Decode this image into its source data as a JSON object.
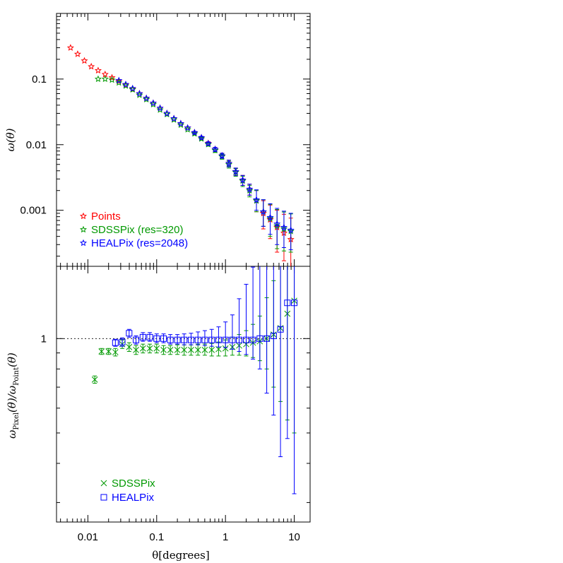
{
  "chart_data": [
    {
      "type": "scatter",
      "panel": "top",
      "xscale": "log",
      "yscale": "log",
      "xlim": [
        0.0035,
        17
      ],
      "ylim": [
        0.00014,
        1.0
      ],
      "ylabel": "ω(θ)",
      "ytick_labels": [
        "0.1",
        "0.01",
        "0.001"
      ],
      "ytick_values": [
        0.1,
        0.01,
        0.001
      ],
      "legend_position": "bottom-left",
      "series": [
        {
          "name": "Points",
          "color": "#ff0000",
          "marker": "star-open",
          "x": [
            0.0056,
            0.0071,
            0.0089,
            0.0112,
            0.0141,
            0.0178,
            0.0224,
            0.0282,
            0.0355,
            0.0447,
            0.0562,
            0.0708,
            0.0891,
            0.112,
            0.141,
            0.178,
            0.224,
            0.282,
            0.355,
            0.447,
            0.562,
            0.708,
            0.891,
            1.12,
            1.41,
            1.78,
            2.24,
            2.82,
            3.55,
            4.47,
            5.62,
            7.08,
            8.91
          ],
          "y": [
            0.3,
            0.24,
            0.19,
            0.155,
            0.135,
            0.118,
            0.105,
            0.093,
            0.082,
            0.071,
            0.06,
            0.051,
            0.043,
            0.036,
            0.03,
            0.025,
            0.021,
            0.018,
            0.0153,
            0.0128,
            0.0105,
            0.0085,
            0.0068,
            0.0052,
            0.0039,
            0.0029,
            0.0021,
            0.0014,
            0.0009,
            0.00072,
            0.00055,
            0.00045,
            0.00036
          ],
          "err_lo": [
            0,
            0,
            0,
            0,
            0,
            0,
            0,
            0,
            0,
            0,
            0,
            0,
            0,
            0,
            0,
            0,
            0,
            0,
            0.0006,
            0.0006,
            0.0006,
            0.0006,
            0.0006,
            0.0006,
            0.0005,
            0.0005,
            0.0004,
            0.00045,
            0.00038,
            0.00035,
            0.00032,
            0.00028,
            0.00025
          ],
          "err_hi": [
            0,
            0,
            0,
            0,
            0,
            0,
            0,
            0,
            0,
            0,
            0,
            0,
            0,
            0,
            0,
            0,
            0,
            0,
            0.0006,
            0.0006,
            0.0006,
            0.0006,
            0.0006,
            0.0006,
            0.0005,
            0.0005,
            0.0004,
            0.0006,
            0.0005,
            0.00048,
            0.00045,
            0.00042,
            0.0004
          ]
        },
        {
          "name": "SDSSPix (res=320)",
          "color": "#009900",
          "marker": "star-open",
          "x": [
            0.0141,
            0.0178,
            0.0224,
            0.0282,
            0.0355,
            0.0447,
            0.0562,
            0.0708,
            0.0891,
            0.112,
            0.141,
            0.178,
            0.224,
            0.282,
            0.355,
            0.447,
            0.562,
            0.708,
            0.891,
            1.12,
            1.41,
            1.78,
            2.24,
            2.82,
            3.55,
            4.47,
            5.62,
            7.08,
            8.91
          ],
          "y": [
            0.1,
            0.1,
            0.097,
            0.088,
            0.079,
            0.069,
            0.057,
            0.049,
            0.041,
            0.034,
            0.029,
            0.024,
            0.02,
            0.017,
            0.0147,
            0.0123,
            0.0101,
            0.0082,
            0.0066,
            0.005,
            0.0038,
            0.0028,
            0.002,
            0.0014,
            0.00095,
            0.00075,
            0.00058,
            0.00052,
            0.00048
          ],
          "err_lo": [
            0,
            0,
            0,
            0,
            0,
            0,
            0,
            0,
            0,
            0,
            0,
            0,
            0,
            0,
            0.0006,
            0.0006,
            0.0006,
            0.0006,
            0.0006,
            0.0006,
            0.0005,
            0.0005,
            0.0004,
            0.00045,
            0.00038,
            0.00035,
            0.00032,
            0.00028,
            0.00025
          ],
          "err_hi": [
            0,
            0,
            0,
            0,
            0,
            0,
            0,
            0,
            0,
            0,
            0,
            0,
            0,
            0,
            0.0006,
            0.0006,
            0.0006,
            0.0006,
            0.0006,
            0.0006,
            0.0005,
            0.0005,
            0.0004,
            0.0006,
            0.0005,
            0.00048,
            0.00045,
            0.00042,
            0.0004
          ]
        },
        {
          "name": "HEALPix (res=2048)",
          "color": "#0000ff",
          "marker": "star-open",
          "x": [
            0.0282,
            0.0355,
            0.0447,
            0.0562,
            0.0708,
            0.0891,
            0.112,
            0.141,
            0.178,
            0.224,
            0.282,
            0.355,
            0.447,
            0.562,
            0.708,
            0.891,
            1.12,
            1.41,
            1.78,
            2.24,
            2.82,
            3.55,
            4.47,
            5.62,
            7.08,
            8.91
          ],
          "y": [
            0.095,
            0.083,
            0.072,
            0.06,
            0.051,
            0.043,
            0.036,
            0.03,
            0.025,
            0.021,
            0.018,
            0.0153,
            0.0128,
            0.0104,
            0.0085,
            0.0068,
            0.0052,
            0.0039,
            0.0029,
            0.0021,
            0.00145,
            0.00095,
            0.00078,
            0.00062,
            0.00055,
            0.0005
          ],
          "err_lo": [
            0,
            0,
            0,
            0,
            0,
            0,
            0,
            0,
            0,
            0,
            0,
            0.0006,
            0.0006,
            0.0006,
            0.0006,
            0.0006,
            0.0006,
            0.0005,
            0.0005,
            0.0004,
            0.00045,
            0.00038,
            0.00035,
            0.00032,
            0.00028,
            0.00025
          ],
          "err_hi": [
            0,
            0,
            0,
            0,
            0,
            0,
            0,
            0,
            0,
            0,
            0,
            0.0006,
            0.0006,
            0.0006,
            0.0006,
            0.0006,
            0.0006,
            0.0005,
            0.0005,
            0.0004,
            0.0006,
            0.0005,
            0.00048,
            0.00045,
            0.00042,
            0.0004
          ]
        }
      ]
    },
    {
      "type": "scatter",
      "panel": "bottom",
      "xscale": "log",
      "yscale": "log",
      "xlim": [
        0.0035,
        17
      ],
      "ylim": [
        0.26,
        1.7
      ],
      "xlabel": "θ[degrees]",
      "ylabel": "ω_Pixel(θ)/ω_Point(θ)",
      "ylabel_parts": {
        "omega": "ω",
        "sub_num": "Pixel",
        "theta": "(θ)/",
        "sub_den": "Point",
        "theta_end": "(θ)"
      },
      "xtick_labels": [
        "0.01",
        "0.1",
        "1",
        "10"
      ],
      "xtick_values": [
        0.01,
        0.1,
        1,
        10
      ],
      "ytick_labels": [
        "1"
      ],
      "ytick_values": [
        1
      ],
      "reference_line": 1,
      "legend_position": "bottom-left",
      "series": [
        {
          "name": "SDSSPix",
          "color": "#009900",
          "marker": "x",
          "x": [
            0.0126,
            0.0158,
            0.02,
            0.0251,
            0.0316,
            0.0398,
            0.0501,
            0.0631,
            0.0794,
            0.1,
            0.126,
            0.158,
            0.2,
            0.251,
            0.316,
            0.398,
            0.501,
            0.631,
            0.794,
            1.0,
            1.26,
            1.58,
            2.0,
            2.51,
            3.16,
            3.98,
            5.01,
            6.31,
            7.94,
            10.0
          ],
          "y": [
            0.74,
            0.91,
            0.91,
            0.905,
            0.96,
            0.94,
            0.92,
            0.93,
            0.93,
            0.93,
            0.92,
            0.92,
            0.92,
            0.92,
            0.92,
            0.92,
            0.92,
            0.92,
            0.925,
            0.93,
            0.94,
            0.95,
            0.96,
            0.97,
            0.98,
            1.0,
            1.03,
            1.08,
            1.2,
            1.32
          ],
          "err_lo": [
            0.02,
            0.02,
            0.02,
            0.025,
            0.03,
            0.03,
            0.03,
            0.03,
            0.03,
            0.03,
            0.03,
            0.03,
            0.03,
            0.035,
            0.035,
            0.035,
            0.035,
            0.04,
            0.045,
            0.05,
            0.055,
            0.065,
            0.08,
            0.1,
            0.13,
            0.2,
            0.33,
            0.45,
            0.65,
            0.82
          ],
          "err_hi": [
            0.02,
            0.02,
            0.02,
            0.025,
            0.03,
            0.03,
            0.03,
            0.03,
            0.03,
            0.03,
            0.03,
            0.03,
            0.035,
            0.035,
            0.035,
            0.04,
            0.04,
            0.045,
            0.05,
            0.06,
            0.07,
            0.08,
            0.1,
            0.14,
            0.2,
            0.35,
            0.5,
            0.7,
            1.1,
            1.2
          ]
        },
        {
          "name": "HEALPix",
          "color": "#0000ff",
          "marker": "square-open",
          "x": [
            0.0251,
            0.0316,
            0.0398,
            0.0501,
            0.0631,
            0.0794,
            0.1,
            0.126,
            0.158,
            0.2,
            0.251,
            0.316,
            0.398,
            0.501,
            0.631,
            0.794,
            1.0,
            1.26,
            1.58,
            2.0,
            2.51,
            3.16,
            3.98,
            5.01,
            6.31,
            7.94,
            10.0
          ],
          "y": [
            0.97,
            0.975,
            1.04,
            0.99,
            1.01,
            1.01,
            1.0,
            1.0,
            0.99,
            0.99,
            0.99,
            0.99,
            0.99,
            0.99,
            0.99,
            0.99,
            0.99,
            0.99,
            0.99,
            0.99,
            0.99,
            1.0,
            1.0,
            1.02,
            1.07,
            1.3,
            1.3
          ],
          "err_lo": [
            0.025,
            0.03,
            0.03,
            0.03,
            0.03,
            0.03,
            0.03,
            0.03,
            0.03,
            0.03,
            0.035,
            0.035,
            0.035,
            0.04,
            0.045,
            0.05,
            0.055,
            0.065,
            0.08,
            0.1,
            0.13,
            0.2,
            0.33,
            0.45,
            0.65,
            0.82,
            0.98
          ],
          "err_hi": [
            0.025,
            0.03,
            0.03,
            0.03,
            0.035,
            0.035,
            0.035,
            0.035,
            0.04,
            0.04,
            0.045,
            0.05,
            0.06,
            0.07,
            0.08,
            0.1,
            0.14,
            0.2,
            0.35,
            0.5,
            0.7,
            1.1,
            1.2,
            1.3,
            1.4,
            1.5,
            1.6
          ]
        }
      ]
    }
  ]
}
